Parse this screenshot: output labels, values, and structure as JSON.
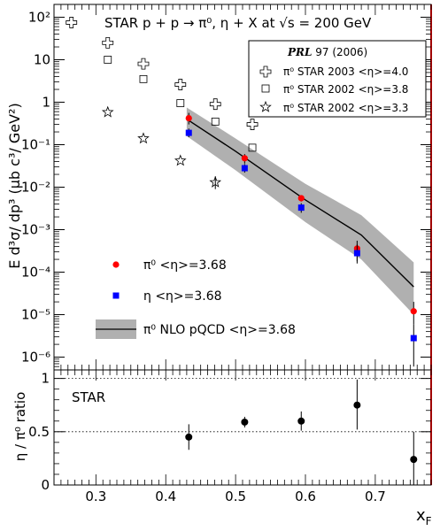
{
  "chart_data": [
    {
      "panel": "top",
      "type": "scatter",
      "title": "STAR   p + p → π⁰, η + X at √s = 200 GeV",
      "ylabel": "E d³σ/ dp³ (μb c³/ GeV²)",
      "yscale": "log",
      "ylim": [
        5e-07,
        200
      ],
      "xlim": [
        0.24,
        0.78
      ],
      "yticks": [
        {
          "v": 1e-06,
          "label": "10⁻⁶"
        },
        {
          "v": 1e-05,
          "label": "10⁻⁵"
        },
        {
          "v": 0.0001,
          "label": "10⁻⁴"
        },
        {
          "v": 0.001,
          "label": "10⁻³"
        },
        {
          "v": 0.01,
          "label": "10⁻²"
        },
        {
          "v": 0.1,
          "label": "10⁻¹"
        },
        {
          "v": 1,
          "label": "1"
        },
        {
          "v": 10,
          "label": "10"
        },
        {
          "v": 100,
          "label": "10²"
        }
      ],
      "series": [
        {
          "name": "π⁰   <η>=3.68",
          "marker": "circle",
          "color": "#ff0000",
          "x": [
            0.433,
            0.513,
            0.594,
            0.674,
            0.755
          ],
          "y": [
            0.42,
            0.048,
            0.0055,
            0.00036,
            1.2e-05
          ],
          "err_lo": [
            0.3,
            0.036,
            0.0046,
            0.00018,
            6e-06
          ],
          "err_hi": [
            0.56,
            0.06,
            0.0064,
            0.00055,
            2e-05
          ]
        },
        {
          "name": "η      <η>=3.68",
          "marker": "square",
          "color": "#0000ff",
          "x": [
            0.433,
            0.513,
            0.594,
            0.674,
            0.755
          ],
          "y": [
            0.19,
            0.028,
            0.0033,
            0.00028,
            2.8e-06
          ],
          "err_lo": [
            0.15,
            0.022,
            0.0025,
            0.00016,
            6e-07
          ],
          "err_hi": [
            0.24,
            0.035,
            0.0042,
            0.00045,
            6e-06
          ]
        },
        {
          "name": "π⁰  STAR 2003  <η>=4.0",
          "marker": "cross",
          "color": "#000000",
          "x": [
            0.265,
            0.317,
            0.368,
            0.421,
            0.471,
            0.524
          ],
          "y": [
            75,
            25,
            8,
            2.6,
            0.9,
            0.3
          ]
        },
        {
          "name": "π⁰  STAR 2002  <η>=3.8",
          "marker": "open-square",
          "color": "#000000",
          "x": [
            0.317,
            0.368,
            0.421,
            0.471,
            0.524
          ],
          "y": [
            10,
            3.5,
            0.95,
            0.35,
            0.085
          ]
        },
        {
          "name": "π⁰  STAR 2002  <η>=3.3",
          "marker": "star",
          "color": "#000000",
          "x": [
            0.317,
            0.368,
            0.421,
            0.471
          ],
          "y": [
            0.58,
            0.14,
            0.042,
            0.013
          ],
          "err_lo": [
            null,
            null,
            null,
            0.009
          ],
          "err_hi": [
            null,
            null,
            null,
            0.018
          ]
        }
      ],
      "band": {
        "name": "π⁰   NLO pQCD  <η>=3.68",
        "x": [
          0.43,
          0.5,
          0.6,
          0.68,
          0.755
        ],
        "center": [
          0.4,
          0.07,
          0.005,
          0.00075,
          4.5e-05
        ],
        "lo": [
          0.16,
          0.025,
          0.0015,
          0.0002,
          1e-05
        ],
        "hi": [
          0.75,
          0.14,
          0.012,
          0.0022,
          0.00017
        ]
      },
      "legend_main": [
        "π⁰   <η>=3.68",
        "η      <η>=3.68",
        "π⁰   NLO pQCD  <η>=3.68"
      ],
      "legend_box": {
        "header_italic": "PRL",
        "header_rest": " 97  (2006)",
        "items": [
          "π⁰  STAR 2003  <η>=4.0",
          "π⁰  STAR 2002  <η>=3.8",
          "π⁰  STAR 2002  <η>=3.3"
        ]
      }
    },
    {
      "panel": "bottom",
      "type": "scatter",
      "label": "STAR",
      "ylabel": "η / π⁰ ratio",
      "xlabel": "x_F",
      "ylim": [
        0,
        1.08
      ],
      "xlim": [
        0.24,
        0.78
      ],
      "yticks": [
        0,
        0.5,
        1
      ],
      "ytick_labels": [
        "0",
        "0.5",
        "1"
      ],
      "xticks": [
        0.3,
        0.4,
        0.5,
        0.6,
        0.7
      ],
      "xtick_labels": [
        "0.3",
        "0.4",
        "0.5",
        "0.6",
        "0.7"
      ],
      "reference_lines": [
        0.5,
        1.0
      ],
      "series": [
        {
          "name": "ratio",
          "marker": "circle",
          "color": "#000000",
          "x": [
            0.433,
            0.513,
            0.594,
            0.674,
            0.755
          ],
          "y": [
            0.45,
            0.59,
            0.6,
            0.75,
            0.24
          ],
          "err_lo": [
            0.33,
            0.54,
            0.51,
            0.52,
            0.0
          ],
          "err_hi": [
            0.57,
            0.64,
            0.69,
            0.99,
            0.5
          ]
        }
      ]
    }
  ]
}
